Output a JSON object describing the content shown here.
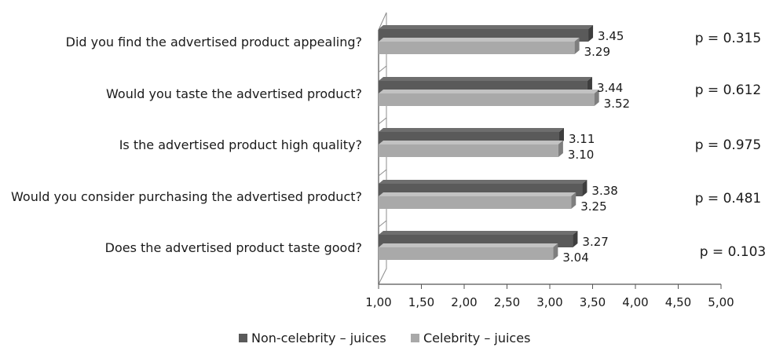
{
  "chart_data": {
    "type": "bar",
    "orientation": "horizontal",
    "categories": [
      "Did you find the advertised product appealing?",
      "Would you taste the advertised product?",
      "Is the advertised product high quality?",
      "Would you consider purchasing the advertised product?",
      "Does the advertised product taste good?"
    ],
    "series": [
      {
        "name": "Non-celebrity – juices",
        "color": "#5a5a5a",
        "values": [
          3.45,
          3.44,
          3.11,
          3.38,
          3.27
        ],
        "labels": [
          "3.45",
          "3.44",
          "3.11",
          "3.38",
          "3.27"
        ]
      },
      {
        "name": "Celebrity – juices",
        "color": "#a9a9a9",
        "values": [
          3.29,
          3.52,
          3.1,
          3.25,
          3.04
        ],
        "labels": [
          "3.29",
          "3.52",
          "3.10",
          "3.25",
          "3.04"
        ]
      }
    ],
    "p_values": [
      "p = 0.315",
      "p = 0.612",
      "p = 0.975",
      "p = 0.481",
      "p = 0.103"
    ],
    "xlim": [
      1.0,
      5.0
    ],
    "x_ticks": [
      "1,00",
      "1,50",
      "2,00",
      "2,50",
      "3,00",
      "3,50",
      "4,00",
      "4,50",
      "5,00"
    ],
    "x_tick_values": [
      1.0,
      1.5,
      2.0,
      2.5,
      3.0,
      3.5,
      4.0,
      4.5,
      5.0
    ],
    "grid": false,
    "legend_position": "bottom-center",
    "style": "3d"
  }
}
